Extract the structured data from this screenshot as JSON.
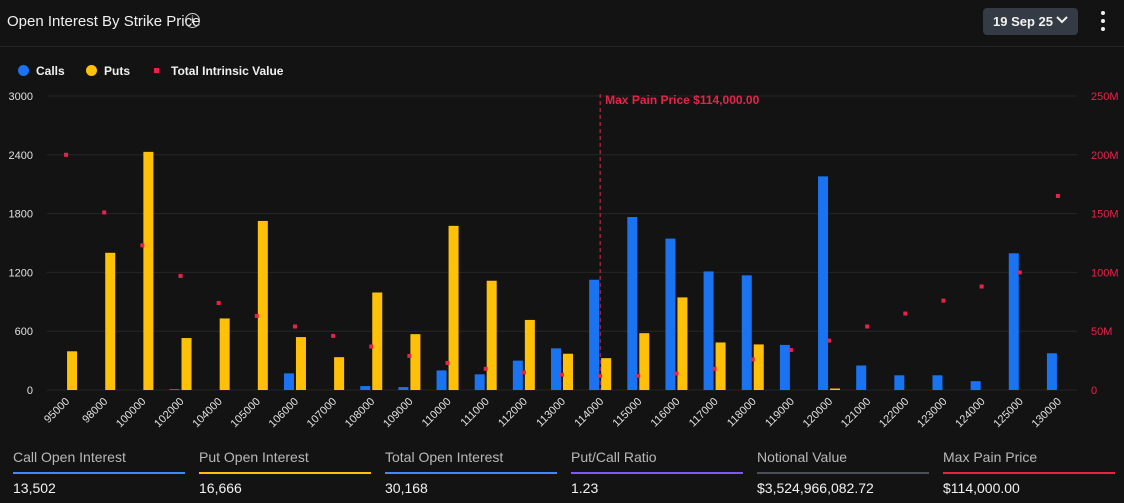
{
  "header": {
    "title": "Open Interest By Strike Price",
    "date": "19 Sep 25"
  },
  "colors": {
    "calls": "#1a73f0",
    "puts": "#ffc107",
    "intrinsic": "#e8234a",
    "grid": "#262626",
    "axis_text": "#e0e0e0"
  },
  "chart_data": {
    "type": "bar",
    "legend": [
      "Calls",
      "Puts",
      "Total Intrinsic Value"
    ],
    "legend_placement": "top-left",
    "categories": [
      "95000",
      "98000",
      "100000",
      "102000",
      "104000",
      "105000",
      "106000",
      "107000",
      "108000",
      "109000",
      "110000",
      "111000",
      "112000",
      "113000",
      "114000",
      "115000",
      "116000",
      "117000",
      "118000",
      "119000",
      "120000",
      "121000",
      "122000",
      "123000",
      "124000",
      "125000",
      "130000"
    ],
    "series": [
      {
        "name": "Calls",
        "axis": "left",
        "values": [
          0,
          0,
          0,
          10,
          0,
          0,
          170,
          0,
          40,
          30,
          200,
          160,
          300,
          425,
          1125,
          1765,
          1545,
          1210,
          1170,
          460,
          2180,
          250,
          150,
          150,
          90,
          1395,
          375
        ]
      },
      {
        "name": "Puts",
        "axis": "left",
        "values": [
          395,
          1400,
          2430,
          530,
          730,
          1725,
          540,
          335,
          995,
          570,
          1675,
          1115,
          715,
          370,
          325,
          580,
          945,
          485,
          465,
          0,
          15,
          0,
          0,
          0,
          0,
          0,
          0
        ]
      },
      {
        "name": "Total Intrinsic Value",
        "axis": "right",
        "type": "scatter",
        "values": [
          200000000,
          151000000,
          123000000,
          97000000,
          74000000,
          63000000,
          54000000,
          46000000,
          37000000,
          29000000,
          23000000,
          18000000,
          15000000,
          13000000,
          12000000,
          12000000,
          14000000,
          18000000,
          26000000,
          34000000,
          42000000,
          54000000,
          65000000,
          76000000,
          88000000,
          100000000,
          165000000
        ]
      }
    ],
    "y_left": {
      "min": 0,
      "max": 3000,
      "ticks": [
        "0",
        "600",
        "1200",
        "1800",
        "2400",
        "3000"
      ]
    },
    "y_right": {
      "min": 0,
      "max": 250000000,
      "ticks": [
        "0",
        "50M",
        "100M",
        "150M",
        "200M",
        "250M"
      ]
    },
    "max_pain": {
      "strike": "114000",
      "label": "Max Pain Price $114,000.00"
    },
    "grid": true
  },
  "stats": [
    {
      "label": "Call Open Interest",
      "value": "13,502",
      "color": "#3d8bff"
    },
    {
      "label": "Put Open Interest",
      "value": "16,666",
      "color": "#ffc107"
    },
    {
      "label": "Total Open Interest",
      "value": "30,168",
      "color": "#3d8bff"
    },
    {
      "label": "Put/Call Ratio",
      "value": "1.23",
      "color": "#7e57ff"
    },
    {
      "label": "Notional Value",
      "value": "$3,524,966,082.72",
      "color": "#4a4f58"
    },
    {
      "label": "Max Pain Price",
      "value": "$114,000.00",
      "color": "#e8234a"
    }
  ]
}
